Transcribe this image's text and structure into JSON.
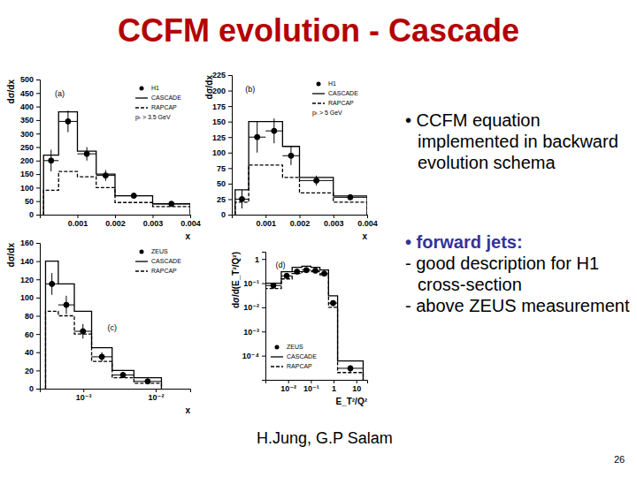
{
  "slide": {
    "title": "CCFM evolution - Cascade",
    "bullet1": "• CCFM equation implemented in backward evolution schema",
    "bullet2": {
      "heading": "• forward jets:",
      "items": [
        "- good description for H1 cross-section",
        "- above ZEUS measurement"
      ]
    },
    "author": "H.Jung, G.P Salam",
    "page": "26"
  },
  "chart_data": [
    {
      "type": "histogram",
      "title": "(a)",
      "annotation": "pₜ > 3.5 GeV",
      "x_label": "x",
      "y_label": "dσ/dx",
      "bins": [
        0.0001,
        0.0005,
        0.001,
        0.0015,
        0.002,
        0.003,
        0.004
      ],
      "xlim": [
        0,
        0.004
      ],
      "xticks": [
        0.001,
        0.002,
        0.003,
        0.004
      ],
      "ylim": [
        0,
        500
      ],
      "yticks": [
        0,
        50,
        100,
        150,
        200,
        250,
        300,
        350,
        400,
        450,
        500
      ],
      "legend": "upper right",
      "series": [
        {
          "name": "H1",
          "type": "scatter",
          "marker": "circle",
          "color": "#000000",
          "values": [
            200,
            345,
            225,
            145,
            70,
            40
          ],
          "errors": [
            40,
            40,
            25,
            20,
            10,
            5
          ]
        },
        {
          "name": "CASCADE",
          "type": "step",
          "line_style": "solid",
          "color": "#000000",
          "values": [
            220,
            380,
            235,
            150,
            70,
            40
          ]
        },
        {
          "name": "RAPCAP",
          "type": "step",
          "line_style": "dashed",
          "color": "#000000",
          "values": [
            90,
            160,
            140,
            100,
            45,
            30
          ]
        }
      ]
    },
    {
      "type": "histogram",
      "title": "(b)",
      "annotation": "pₜ > 5 GeV",
      "x_label": "x",
      "y_label": "dσ/dx",
      "bins": [
        0.0001,
        0.0005,
        0.001,
        0.0015,
        0.002,
        0.003,
        0.004
      ],
      "xlim": [
        0,
        0.004
      ],
      "xticks": [
        0.001,
        0.002,
        0.003,
        0.004
      ],
      "ylim": [
        0,
        225
      ],
      "yticks": [
        0,
        25,
        50,
        75,
        100,
        125,
        150,
        175,
        200,
        225
      ],
      "legend": "upper right",
      "series": [
        {
          "name": "H1",
          "type": "scatter",
          "marker": "circle",
          "color": "#000000",
          "values": [
            25,
            125,
            135,
            95,
            55,
            28
          ],
          "errors": [
            15,
            25,
            20,
            15,
            8,
            4
          ]
        },
        {
          "name": "CASCADE",
          "type": "step",
          "line_style": "solid",
          "color": "#000000",
          "values": [
            40,
            150,
            150,
            110,
            60,
            30
          ]
        },
        {
          "name": "RAPCAP",
          "type": "step",
          "line_style": "dashed",
          "color": "#000000",
          "values": [
            20,
            80,
            80,
            60,
            35,
            20
          ]
        }
      ]
    },
    {
      "type": "histogram",
      "title": "(c)",
      "x_label": "x",
      "y_label": "dσ/dx",
      "log": "x",
      "bins": [
        0.0003,
        0.00045,
        0.00075,
        0.0013,
        0.0025,
        0.005,
        0.012
      ],
      "xlim": [
        0.00025,
        0.03
      ],
      "xticks": [
        {
          "value": 0.001,
          "label": "10⁻³"
        },
        {
          "value": 0.01,
          "label": "10⁻²"
        }
      ],
      "ylim": [
        0,
        160
      ],
      "yticks": [
        0,
        20,
        40,
        60,
        80,
        100,
        120,
        140,
        160
      ],
      "legend": "upper right",
      "series": [
        {
          "name": "ZEUS",
          "type": "scatter",
          "marker": "circle",
          "color": "#000000",
          "values": [
            115,
            92,
            63,
            35,
            15,
            8
          ],
          "errors": [
            12,
            10,
            8,
            5,
            3,
            2
          ]
        },
        {
          "name": "CASCADE",
          "type": "step",
          "line_style": "solid",
          "color": "#000000",
          "values": [
            140,
            115,
            85,
            45,
            20,
            12
          ]
        },
        {
          "name": "RAPCAP",
          "type": "step",
          "line_style": "dashed",
          "color": "#000000",
          "values": [
            85,
            80,
            60,
            30,
            12,
            6
          ]
        }
      ]
    },
    {
      "type": "histogram",
      "title": "(d)",
      "x_label": "E_T²/Q²",
      "y_label": "dσ/d(E_T²/Q²)",
      "log": true,
      "bins": [
        0.001,
        0.005,
        0.015,
        0.04,
        0.1,
        0.25,
        0.6,
        1.5,
        20
      ],
      "xlim": [
        0.001,
        30
      ],
      "xticks": [
        {
          "value": 0.01,
          "label": "10⁻²"
        },
        {
          "value": 0.1,
          "label": "10⁻¹"
        },
        1,
        10
      ],
      "ylim": [
        1e-05,
        2
      ],
      "yticks": [
        1,
        {
          "value": 0.1,
          "label": "10⁻¹"
        },
        {
          "value": 0.01,
          "label": "10⁻²"
        },
        {
          "value": 0.001,
          "label": "10⁻³"
        },
        {
          "value": 0.0001,
          "label": "10⁻⁴"
        }
      ],
      "legend": "lower left",
      "series": [
        {
          "name": "ZEUS",
          "type": "scatter",
          "marker": "circle",
          "color": "#000000",
          "values": [
            0.08,
            0.2,
            0.3,
            0.35,
            0.33,
            0.25,
            0.015,
            3e-05
          ],
          "errors": [
            0.02,
            0.03,
            0.04,
            0.04,
            0.04,
            0.03,
            0.004,
            1e-05
          ]
        },
        {
          "name": "CASCADE",
          "type": "step",
          "line_style": "solid",
          "color": "#000000",
          "values": [
            0.1,
            0.3,
            0.45,
            0.5,
            0.45,
            0.35,
            0.03,
            6e-05
          ]
        },
        {
          "name": "RAPCAP",
          "type": "step",
          "line_style": "dashed",
          "color": "#000000",
          "values": [
            0.06,
            0.15,
            0.25,
            0.3,
            0.3,
            0.22,
            0.01,
            2e-05
          ]
        }
      ]
    }
  ]
}
